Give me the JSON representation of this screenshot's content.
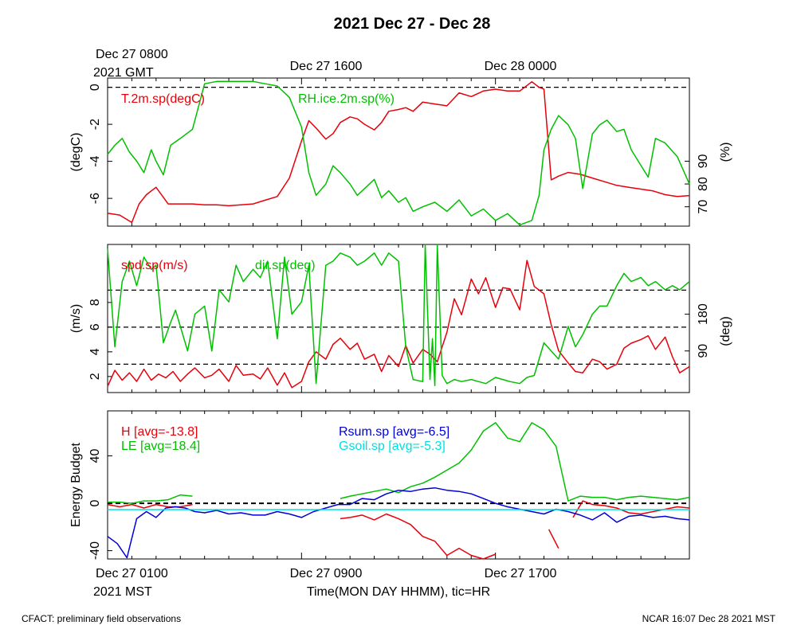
{
  "title": "2021 Dec 27 - Dec 28",
  "top_axis": {
    "labels": [
      {
        "line1": "Dec 27 0800",
        "line2": "2021 GMT"
      },
      {
        "line1": "Dec 27 1600",
        "line2": ""
      },
      {
        "line1": "Dec 28 0000",
        "line2": ""
      }
    ]
  },
  "bottom_axis": {
    "labels": [
      {
        "line1": "Dec 27 0100",
        "line2": "2021 MST"
      },
      {
        "line1": "Dec 27 0900",
        "line2": ""
      },
      {
        "line1": "Dec 27 1700",
        "line2": ""
      }
    ],
    "xlabel": "Time(MON DAY HHMM), tic=HR"
  },
  "footer": {
    "left": "CFACT: preliminary field observations",
    "right": "NCAR 16:07 Dec 28 2021 MST"
  },
  "colors": {
    "red": "#e8000b",
    "green": "#00c000",
    "blue": "#0000d8",
    "cyan": "#00e0e0",
    "black": "#000000"
  },
  "chart_data": [
    {
      "type": "line",
      "x_unit": "hours since Dec 27 0100 MST",
      "xlim": [
        0,
        24
      ],
      "ylabel_left": "(degC)",
      "ylabel_right": "(%)",
      "ylim_left": [
        -7.5,
        0.5
      ],
      "ylim_right": [
        61.5,
        126.5
      ],
      "yticks_left": [
        "0",
        "-2",
        "-4",
        "-6"
      ],
      "yticks_left_values": [
        0,
        -2,
        -4,
        -6
      ],
      "yticks_right": [
        "90",
        "80",
        "70"
      ],
      "yticks_right_values": [
        90,
        80,
        70
      ],
      "reference_lines_left": [
        0
      ],
      "series": [
        {
          "name": "T.2m.sp(degC)",
          "color": "red",
          "axis": "left",
          "x": [
            0,
            0.5,
            1,
            1.3,
            1.6,
            2,
            2.5,
            3,
            3.5,
            4,
            4.5,
            5,
            5.5,
            6,
            6.5,
            7,
            7.5,
            8,
            8.3,
            8.6,
            9,
            9.3,
            9.6,
            10,
            10.3,
            10.6,
            11,
            11.3,
            11.6,
            12,
            12.3,
            12.6,
            13,
            13.5,
            14,
            14.5,
            15,
            15.5,
            16,
            16.5,
            17,
            17.5,
            17.8,
            18,
            18.3,
            18.6,
            19,
            19.5,
            20,
            20.5,
            21,
            21.5,
            22.5,
            23,
            23.5,
            24
          ],
          "y": [
            -6.8,
            -6.9,
            -7.3,
            -6.3,
            -5.8,
            -5.4,
            -6.3,
            -6.3,
            -6.3,
            -6.35,
            -6.35,
            -6.4,
            -6.35,
            -6.3,
            -6.1,
            -5.9,
            -4.9,
            -2.9,
            -1.8,
            -2.2,
            -2.8,
            -2.5,
            -1.9,
            -1.6,
            -1.7,
            -2.0,
            -2.3,
            -1.9,
            -1.3,
            -1.2,
            -1.1,
            -1.3,
            -0.8,
            -0.9,
            -1.0,
            -0.3,
            -0.5,
            -0.2,
            -0.1,
            -0.2,
            -0.2,
            0.3,
            0.0,
            -0.1,
            -5.0,
            -4.8,
            -4.6,
            -4.7,
            -4.9,
            -5.1,
            -5.3,
            -5.4,
            -5.6,
            -5.8,
            -5.9,
            -5.85
          ]
        },
        {
          "name": "RH.ice.2m.sp(%)",
          "color": "green",
          "axis": "right",
          "x": [
            0,
            0.3,
            0.6,
            0.9,
            1.2,
            1.5,
            1.8,
            2.0,
            2.3,
            2.6,
            3.0,
            3.5,
            4.0,
            4.5,
            5.0,
            5.5,
            6.0,
            6.5,
            7.0,
            7.5,
            8.0,
            8.3,
            8.6,
            9.0,
            9.3,
            9.6,
            10.0,
            10.3,
            10.6,
            11.0,
            11.3,
            11.6,
            12.0,
            12.3,
            12.6,
            13.0,
            13.5,
            14.0,
            14.5,
            15.0,
            15.5,
            16.0,
            16.5,
            17.0,
            17.5,
            17.8,
            18.0,
            18.3,
            18.6,
            19.0,
            19.3,
            19.6,
            20.0,
            20.3,
            20.6,
            21.0,
            21.3,
            21.6,
            22.3,
            22.6,
            23.0,
            23.5,
            24.0
          ],
          "y": [
            93,
            97,
            100,
            94,
            90,
            85,
            95,
            90,
            84,
            97,
            100,
            104,
            124,
            125,
            125,
            125,
            125,
            124,
            123,
            118,
            105,
            85,
            75,
            80,
            88,
            85,
            80,
            75,
            78,
            82,
            74,
            77,
            72,
            74,
            68,
            70,
            72,
            68,
            73,
            66,
            69,
            64,
            67,
            62,
            64,
            75,
            95,
            104,
            110,
            106,
            100,
            78,
            102,
            106,
            108,
            103,
            104,
            95,
            83,
            100,
            98,
            92,
            80
          ]
        }
      ]
    },
    {
      "type": "line",
      "x_unit": "hours since Dec 27 0100 MST",
      "xlim": [
        0,
        24
      ],
      "ylabel_left": "(m/s)",
      "ylabel_right": "(deg)",
      "ylim_left": [
        0.7,
        12.7
      ],
      "ylim_right": [
        -12,
        351
      ],
      "yticks_left": [
        "8",
        "6",
        "4",
        "2"
      ],
      "yticks_left_values": [
        8,
        6,
        4,
        2
      ],
      "yticks_right": [
        "180",
        "90"
      ],
      "yticks_right_values": [
        180,
        90
      ],
      "reference_lines_left": [
        9,
        6,
        3
      ],
      "series": [
        {
          "name": "spd.sp(m/s)",
          "color": "red",
          "axis": "left",
          "x": [
            0,
            0.3,
            0.6,
            0.9,
            1.2,
            1.5,
            1.8,
            2.1,
            2.4,
            2.7,
            3.0,
            3.3,
            3.6,
            4.0,
            4.3,
            4.6,
            5.0,
            5.3,
            5.6,
            6.0,
            6.3,
            6.6,
            7.0,
            7.3,
            7.6,
            8.0,
            8.3,
            8.6,
            9.0,
            9.3,
            9.6,
            10.0,
            10.3,
            10.6,
            11.0,
            11.3,
            11.6,
            12.0,
            12.3,
            12.6,
            13.0,
            13.3,
            13.6,
            14.0,
            14.3,
            14.6,
            15.0,
            15.3,
            15.6,
            16.0,
            16.3,
            16.6,
            17.0,
            17.3,
            17.6,
            18.0,
            18.3,
            18.6,
            19.0,
            19.3,
            19.6,
            20.0,
            20.3,
            20.6,
            21.0,
            21.3,
            21.6,
            22.0,
            22.3,
            22.6,
            23.0,
            23.3,
            23.6,
            24.0
          ],
          "y": [
            1.2,
            2.5,
            1.7,
            2.3,
            1.6,
            2.6,
            1.7,
            2.2,
            1.9,
            2.4,
            1.6,
            2.2,
            2.7,
            1.9,
            2.1,
            2.6,
            1.6,
            2.9,
            2.1,
            2.2,
            1.8,
            2.7,
            1.3,
            2.3,
            1.1,
            1.6,
            3.2,
            4.0,
            3.4,
            4.6,
            5.1,
            4.2,
            4.7,
            3.4,
            3.8,
            2.4,
            3.7,
            2.8,
            4.5,
            3.1,
            4.2,
            3.8,
            3.2,
            5.6,
            8.3,
            7.0,
            9.9,
            8.7,
            10.0,
            7.6,
            9.2,
            9.1,
            7.4,
            11.4,
            9.3,
            8.7,
            6.2,
            4.1,
            3.1,
            2.4,
            2.3,
            3.4,
            3.2,
            2.6,
            3.0,
            4.3,
            4.7,
            5.0,
            5.3,
            4.2,
            5.2,
            3.6,
            2.3,
            2.8
          ]
        },
        {
          "name": "dir.sp(deg)",
          "color": "green",
          "axis": "right",
          "x": [
            0,
            0.3,
            0.6,
            0.9,
            1.2,
            1.5,
            1.8,
            2.0,
            2.3,
            2.6,
            2.8,
            3.0,
            3.3,
            3.6,
            4.0,
            4.3,
            4.6,
            5.0,
            5.3,
            5.6,
            6.0,
            6.3,
            6.6,
            7.0,
            7.3,
            7.6,
            8.0,
            8.3,
            8.6,
            9.0,
            9.3,
            9.6,
            10.0,
            10.3,
            10.6,
            11.0,
            11.3,
            11.6,
            12.0,
            12.3,
            12.6,
            13.0,
            13.1,
            13.3,
            13.4,
            13.5,
            13.6,
            13.8,
            14.0,
            14.3,
            14.6,
            15.0,
            15.3,
            15.6,
            16.0,
            16.3,
            16.6,
            17.0,
            17.3,
            17.6,
            18.0,
            18.3,
            18.6,
            19.0,
            19.3,
            19.6,
            20.0,
            20.3,
            20.6,
            21.0,
            21.3,
            21.6,
            22.0,
            22.3,
            22.6,
            23.0,
            23.3,
            23.6,
            24.0
          ],
          "y": [
            340,
            100,
            260,
            310,
            250,
            320,
            290,
            300,
            110,
            160,
            190,
            150,
            90,
            180,
            200,
            90,
            240,
            210,
            300,
            260,
            290,
            270,
            310,
            120,
            320,
            180,
            210,
            300,
            10,
            300,
            310,
            330,
            320,
            300,
            310,
            330,
            300,
            330,
            310,
            100,
            20,
            15,
            350,
            20,
            120,
            5,
            350,
            30,
            10,
            20,
            15,
            20,
            15,
            10,
            25,
            20,
            15,
            10,
            25,
            30,
            110,
            90,
            70,
            150,
            100,
            130,
            180,
            200,
            200,
            250,
            280,
            260,
            270,
            250,
            260,
            240,
            250,
            240,
            260
          ]
        }
      ]
    },
    {
      "type": "line",
      "x_unit": "hours since Dec 27 0100 MST",
      "xlim": [
        0,
        24
      ],
      "ylabel_left": "Energy Budget",
      "ylim_left": [
        -47,
        78
      ],
      "yticks_left": [
        "40",
        "0",
        "-40"
      ],
      "yticks_left_values": [
        40,
        0,
        -40
      ],
      "reference_lines_left": [
        0
      ],
      "series": [
        {
          "name": "H [avg=-13.8]",
          "color": "red",
          "x": [
            0,
            0.5,
            1,
            1.5,
            2,
            2.5,
            3,
            3.5,
            null,
            9.6,
            10,
            10.5,
            11,
            11.5,
            12,
            12.5,
            13,
            13.5,
            14,
            14.5,
            15,
            15.5,
            16,
            null,
            18.2,
            18.6,
            null,
            19.2,
            19.6,
            20,
            20.5,
            21,
            21.5,
            22,
            22.5,
            23,
            23.5,
            24
          ],
          "y": [
            -1,
            -3,
            -1,
            -4,
            -1,
            -3,
            -3,
            -1,
            null,
            -13,
            -12,
            -10,
            -14,
            -9,
            -13,
            -18,
            -28,
            -32,
            -44,
            -38,
            -44,
            -48,
            -43,
            null,
            -22,
            -38,
            null,
            -12,
            2,
            -1,
            -2,
            -4,
            -8,
            -9,
            -7,
            -5,
            -3,
            -4
          ]
        },
        {
          "name": "LE [avg=18.4]",
          "color": "green",
          "x": [
            0,
            0.5,
            1,
            1.5,
            2,
            2.5,
            3,
            3.5,
            null,
            9.6,
            10,
            10.5,
            11,
            11.5,
            12,
            12.5,
            13,
            13.5,
            14,
            14.5,
            15,
            15.5,
            16,
            16.5,
            17,
            17.5,
            18,
            18.5,
            19,
            19.5,
            20,
            20.5,
            21,
            21.5,
            22,
            22.5,
            23,
            23.5,
            24
          ],
          "y": [
            1,
            1,
            0,
            2,
            2,
            3,
            7,
            6,
            null,
            4,
            6,
            8,
            10,
            12,
            9,
            14,
            17,
            22,
            28,
            34,
            45,
            61,
            68,
            55,
            52,
            68,
            62,
            48,
            2,
            6,
            5,
            5,
            3,
            5,
            6,
            5,
            4,
            3,
            5
          ]
        },
        {
          "name": "Rsum.sp [avg=-6.5]",
          "color": "blue",
          "x": [
            0,
            0.4,
            0.8,
            1.2,
            1.6,
            2,
            2.4,
            2.8,
            3.2,
            3.6,
            4,
            4.5,
            5,
            5.5,
            6,
            6.5,
            7,
            7.5,
            8,
            8.5,
            9,
            9.5,
            10,
            10.5,
            11,
            11.5,
            12,
            12.5,
            13,
            13.5,
            14,
            14.5,
            15,
            15.5,
            16,
            16.5,
            17,
            17.5,
            18,
            18.5,
            19,
            19.5,
            20,
            20.5,
            21,
            21.5,
            22,
            22.5,
            23,
            23.5,
            24
          ],
          "y": [
            -28,
            -34,
            -46,
            -13,
            -7,
            -12,
            -4,
            -3,
            -4,
            -7,
            -8,
            -6,
            -9,
            -8,
            -10,
            -10,
            -7,
            -9,
            -12,
            -7,
            -4,
            -1,
            -1,
            4,
            3,
            8,
            11,
            10,
            12,
            13,
            11,
            10,
            8,
            4,
            0,
            -3,
            -5,
            -7,
            -9,
            -5,
            -7,
            -10,
            -14,
            -8,
            -16,
            -11,
            -10,
            -12,
            -11,
            -13,
            -14
          ]
        },
        {
          "name": "Gsoil.sp [avg=-5.3]",
          "color": "cyan",
          "x": [
            0,
            24
          ],
          "y": [
            -5.3,
            -5.3
          ]
        }
      ]
    }
  ]
}
